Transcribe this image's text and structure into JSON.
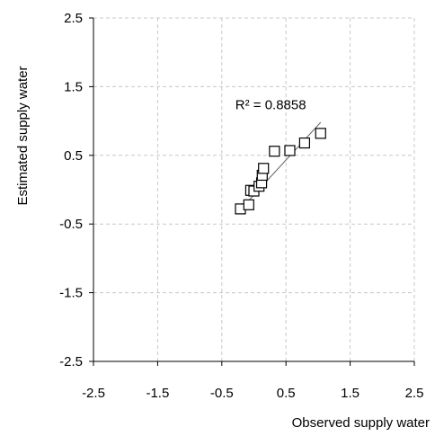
{
  "chart_data": {
    "type": "scatter",
    "title": "",
    "xlabel": "Observed supply water",
    "ylabel": "Estimated supply water",
    "xlim": [
      -2.5,
      2.5
    ],
    "ylim": [
      -2.5,
      2.5
    ],
    "x_ticks": [
      -2.5,
      -1.5,
      -0.5,
      0.5,
      1.5,
      2.5
    ],
    "y_ticks": [
      -2.5,
      -1.5,
      -0.5,
      0.5,
      1.5,
      2.5
    ],
    "x_tick_labels": [
      "-2.5",
      "-1.5",
      "-0.5",
      "0.5",
      "1.5",
      "2.5"
    ],
    "y_tick_labels": [
      "-2.5",
      "-1.5",
      "-0.5",
      "0.5",
      "1.5",
      "2.5"
    ],
    "grid": true,
    "legend": "none",
    "marker": "open-square",
    "marker_color": "#000000",
    "series": [
      {
        "points": [
          [
            -0.21,
            -0.28
          ],
          [
            -0.08,
            -0.22
          ],
          [
            -0.05,
            -0.01
          ],
          [
            0.0,
            -0.02
          ],
          [
            0.08,
            0.05
          ],
          [
            0.12,
            0.1
          ],
          [
            0.13,
            0.21
          ],
          [
            0.15,
            0.31
          ],
          [
            0.32,
            0.56
          ],
          [
            0.56,
            0.57
          ],
          [
            0.79,
            0.68
          ],
          [
            1.04,
            0.82
          ]
        ]
      }
    ],
    "trendline": {
      "type": "linear",
      "x_range": [
        -0.2,
        1.04
      ],
      "y_range": [
        -0.28,
        0.98
      ],
      "color": "#666666"
    },
    "annotation": {
      "text": "R² = 0.8858",
      "x": 0.55,
      "y": 1.17
    }
  }
}
